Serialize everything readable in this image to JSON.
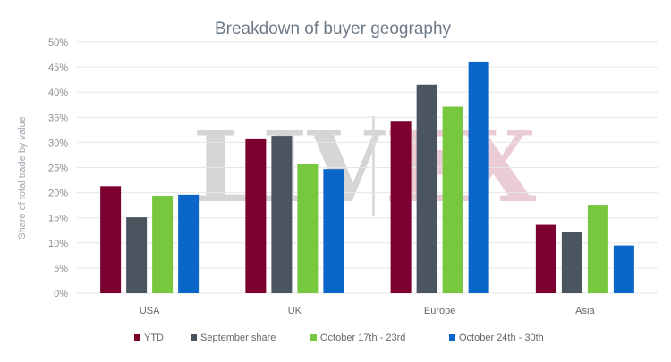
{
  "chart_data": {
    "type": "bar",
    "title": "Breakdown of buyer geography",
    "ylabel": "Share of total trade by value",
    "xlabel": "",
    "categories": [
      "USA",
      "UK",
      "Europe",
      "Asia"
    ],
    "ylim": [
      0,
      50
    ],
    "yticks": [
      "0%",
      "5%",
      "10%",
      "15%",
      "20%",
      "25%",
      "30%",
      "35%",
      "40%",
      "45%",
      "50%"
    ],
    "grid": true,
    "legend_position": "bottom",
    "series": [
      {
        "name": "YTD",
        "color": "#7b0030",
        "values": [
          21.3,
          30.8,
          34.3,
          13.6
        ]
      },
      {
        "name": "September share",
        "color": "#4a5560",
        "values": [
          15.1,
          31.3,
          41.5,
          12.2
        ]
      },
      {
        "name": "October 17th - 23rd",
        "color": "#77c83f",
        "values": [
          19.4,
          25.8,
          37.1,
          17.6
        ]
      },
      {
        "name": "October 24th - 30th",
        "color": "#0a66c8",
        "values": [
          19.6,
          24.7,
          46.1,
          9.5
        ]
      }
    ],
    "watermark": "LIV-EX"
  }
}
